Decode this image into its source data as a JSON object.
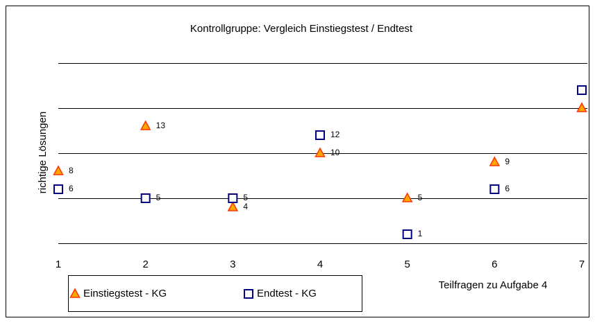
{
  "chart_data": {
    "type": "scatter",
    "title": "Kontrollgruppe: Vergleich Einstiegstest / Endtest",
    "x_label": "Teilfragen zu Aufgabe 4",
    "y_label": "richtige Lösungen",
    "x": [
      1,
      2,
      3,
      4,
      5,
      6,
      7
    ],
    "series": [
      {
        "name": "Einstiegstest - KG",
        "color": "#ffa500",
        "edge": "#ff3300",
        "marker": "triangle",
        "values": [
          8,
          13,
          4,
          10,
          5,
          9,
          15
        ]
      },
      {
        "name": "Endtest - KG",
        "color": "#000080",
        "marker": "square",
        "values": [
          6,
          5,
          5,
          12,
          1,
          6,
          17
        ]
      }
    ],
    "xlim": [
      1,
      7
    ],
    "xticks": [
      1,
      2,
      3,
      4,
      5,
      6,
      7
    ],
    "ylim": [
      0,
      20
    ],
    "yticks": [
      0,
      5,
      10,
      15,
      20
    ],
    "grid": true,
    "legend": "bottom"
  }
}
